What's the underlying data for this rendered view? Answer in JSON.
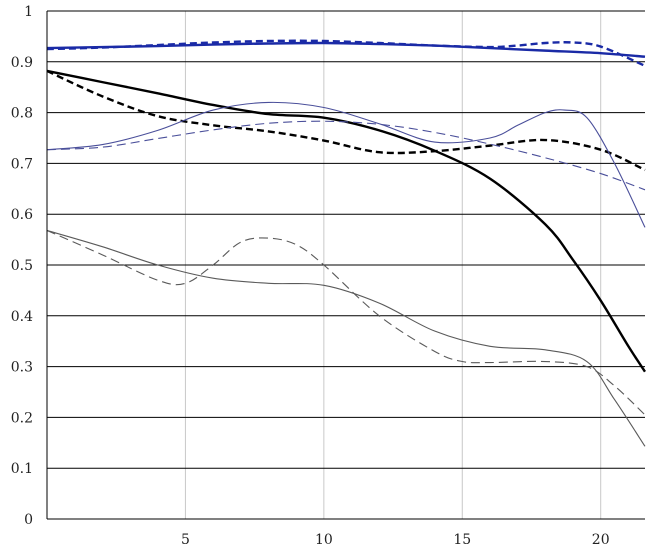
{
  "chart_data": {
    "type": "line",
    "title": "",
    "xlabel": "",
    "ylabel": "",
    "xlim": [
      0,
      21.6
    ],
    "ylim": [
      0,
      1
    ],
    "grid": {
      "horizontal": true,
      "vertical": true
    },
    "y_ticks": [
      "0",
      "0.1",
      "0.2",
      "0.3",
      "0.4",
      "0.5",
      "0.6",
      "0.7",
      "0.8",
      "0.9",
      "1"
    ],
    "x_ticks": [
      "5",
      "10",
      "15",
      "20"
    ],
    "series": [
      {
        "color": "#1a2aa6",
        "dash": "solid",
        "width": "thick",
        "x": [
          0,
          2,
          4,
          6,
          8,
          10,
          12,
          14,
          16,
          18,
          20,
          21.6
        ],
        "y": [
          0.927,
          0.929,
          0.931,
          0.934,
          0.936,
          0.937,
          0.935,
          0.932,
          0.927,
          0.922,
          0.917,
          0.91
        ]
      },
      {
        "color": "#1a2aa6",
        "dash": "dashed",
        "width": "thick",
        "x": [
          0,
          2,
          4,
          6,
          8,
          10,
          12,
          14,
          16,
          17,
          18,
          19,
          20,
          21.6
        ],
        "y": [
          0.925,
          0.928,
          0.933,
          0.938,
          0.941,
          0.941,
          0.937,
          0.932,
          0.929,
          0.932,
          0.937,
          0.938,
          0.93,
          0.892
        ]
      },
      {
        "color": "#000000",
        "dash": "solid",
        "width": "thick",
        "x": [
          0,
          2,
          4,
          6,
          8,
          10,
          12,
          14,
          16,
          18,
          19,
          20,
          21,
          21.6
        ],
        "y": [
          0.882,
          0.86,
          0.838,
          0.815,
          0.797,
          0.79,
          0.765,
          0.725,
          0.67,
          0.58,
          0.51,
          0.43,
          0.34,
          0.29
        ]
      },
      {
        "color": "#000000",
        "dash": "dashed",
        "width": "thick",
        "x": [
          0,
          2,
          4,
          6,
          8,
          10,
          12,
          14,
          16,
          18,
          20,
          21.6
        ],
        "y": [
          0.882,
          0.832,
          0.793,
          0.775,
          0.763,
          0.745,
          0.722,
          0.724,
          0.735,
          0.746,
          0.727,
          0.687
        ]
      },
      {
        "color": "#4a4f9a",
        "dash": "solid",
        "width": "thin",
        "x": [
          0,
          2,
          4,
          6,
          8,
          10,
          12,
          14,
          16,
          17,
          18,
          18.7,
          19.5,
          20.5,
          21.6
        ],
        "y": [
          0.727,
          0.737,
          0.765,
          0.805,
          0.82,
          0.81,
          0.778,
          0.742,
          0.75,
          0.775,
          0.8,
          0.805,
          0.79,
          0.7,
          0.574
        ]
      },
      {
        "color": "#4a4f9a",
        "dash": "dashed",
        "width": "thin",
        "x": [
          0,
          2,
          4,
          6,
          8,
          10,
          12,
          14,
          16,
          18,
          20,
          21.6
        ],
        "y": [
          0.727,
          0.732,
          0.749,
          0.766,
          0.779,
          0.783,
          0.777,
          0.761,
          0.738,
          0.711,
          0.68,
          0.648
        ]
      },
      {
        "color": "#5a5a5a",
        "dash": "solid",
        "width": "thin",
        "x": [
          0,
          2,
          4,
          6,
          8,
          10,
          12,
          14,
          16,
          18,
          19.5,
          20.5,
          21.6
        ],
        "y": [
          0.568,
          0.536,
          0.5,
          0.474,
          0.464,
          0.46,
          0.425,
          0.37,
          0.34,
          0.333,
          0.31,
          0.235,
          0.143
        ]
      },
      {
        "color": "#5a5a5a",
        "dash": "dashed",
        "width": "thin",
        "x": [
          0,
          2,
          4,
          5,
          6,
          7,
          8,
          9,
          10,
          12,
          14,
          15,
          16,
          18,
          19.5,
          20.5,
          21.6
        ],
        "y": [
          0.568,
          0.52,
          0.47,
          0.464,
          0.5,
          0.545,
          0.553,
          0.54,
          0.5,
          0.4,
          0.33,
          0.31,
          0.308,
          0.31,
          0.3,
          0.262,
          0.205
        ]
      }
    ]
  }
}
